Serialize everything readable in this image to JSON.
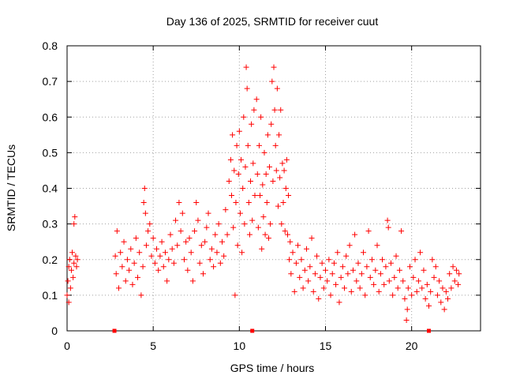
{
  "chart_data": {
    "type": "scatter",
    "title": "Day 136 of 2025, SRMTID for receiver cuut",
    "xlabel": "GPS time / hours",
    "ylabel": "SRMTID / TECUs",
    "xlim": [
      0,
      24
    ],
    "ylim": [
      0,
      0.8
    ],
    "x_ticks": [
      0,
      5,
      10,
      15,
      20
    ],
    "y_ticks": [
      0,
      0.1,
      0.2,
      0.3,
      0.4,
      0.5,
      0.6,
      0.7,
      0.8
    ],
    "grid": true,
    "marker": "+",
    "color": "#ff0000",
    "zero_markers_x": [
      2.75,
      10.75,
      21.0
    ],
    "series": [
      {
        "name": "SRMTID",
        "points": [
          [
            0.0,
            0.1
          ],
          [
            0.05,
            0.14
          ],
          [
            0.1,
            0.18
          ],
          [
            0.1,
            0.08
          ],
          [
            0.15,
            0.2
          ],
          [
            0.2,
            0.12
          ],
          [
            0.25,
            0.17
          ],
          [
            0.3,
            0.22
          ],
          [
            0.35,
            0.15
          ],
          [
            0.4,
            0.3
          ],
          [
            0.4,
            0.19
          ],
          [
            0.45,
            0.32
          ],
          [
            0.5,
            0.21
          ],
          [
            0.55,
            0.18
          ],
          [
            0.6,
            0.2
          ],
          [
            2.8,
            0.21
          ],
          [
            2.85,
            0.16
          ],
          [
            2.9,
            0.28
          ],
          [
            3.0,
            0.12
          ],
          [
            3.1,
            0.22
          ],
          [
            3.2,
            0.18
          ],
          [
            3.3,
            0.25
          ],
          [
            3.4,
            0.14
          ],
          [
            3.5,
            0.2
          ],
          [
            3.6,
            0.17
          ],
          [
            3.7,
            0.23
          ],
          [
            3.8,
            0.13
          ],
          [
            3.9,
            0.19
          ],
          [
            4.0,
            0.26
          ],
          [
            4.1,
            0.15
          ],
          [
            4.2,
            0.22
          ],
          [
            4.3,
            0.1
          ],
          [
            4.4,
            0.18
          ],
          [
            4.45,
            0.36
          ],
          [
            4.5,
            0.4
          ],
          [
            4.55,
            0.33
          ],
          [
            4.6,
            0.24
          ],
          [
            4.7,
            0.28
          ],
          [
            4.8,
            0.3
          ],
          [
            4.9,
            0.21
          ],
          [
            5.0,
            0.26
          ],
          [
            5.1,
            0.19
          ],
          [
            5.2,
            0.23
          ],
          [
            5.3,
            0.17
          ],
          [
            5.4,
            0.21
          ],
          [
            5.5,
            0.25
          ],
          [
            5.6,
            0.18
          ],
          [
            5.7,
            0.22
          ],
          [
            5.8,
            0.14
          ],
          [
            5.9,
            0.2
          ],
          [
            6.0,
            0.27
          ],
          [
            6.1,
            0.23
          ],
          [
            6.2,
            0.19
          ],
          [
            6.3,
            0.31
          ],
          [
            6.4,
            0.24
          ],
          [
            6.5,
            0.36
          ],
          [
            6.6,
            0.28
          ],
          [
            6.7,
            0.33
          ],
          [
            6.8,
            0.2
          ],
          [
            6.9,
            0.25
          ],
          [
            7.0,
            0.17
          ],
          [
            7.1,
            0.26
          ],
          [
            7.2,
            0.22
          ],
          [
            7.3,
            0.14
          ],
          [
            7.4,
            0.28
          ],
          [
            7.5,
            0.36
          ],
          [
            7.6,
            0.31
          ],
          [
            7.7,
            0.19
          ],
          [
            7.8,
            0.24
          ],
          [
            7.9,
            0.16
          ],
          [
            8.0,
            0.25
          ],
          [
            8.1,
            0.29
          ],
          [
            8.2,
            0.33
          ],
          [
            8.3,
            0.2
          ],
          [
            8.4,
            0.23
          ],
          [
            8.5,
            0.18
          ],
          [
            8.6,
            0.27
          ],
          [
            8.7,
            0.22
          ],
          [
            8.8,
            0.3
          ],
          [
            8.9,
            0.19
          ],
          [
            9.0,
            0.25
          ],
          [
            9.1,
            0.21
          ],
          [
            9.2,
            0.34
          ],
          [
            9.3,
            0.27
          ],
          [
            9.4,
            0.42
          ],
          [
            9.5,
            0.48
          ],
          [
            9.55,
            0.38
          ],
          [
            9.6,
            0.55
          ],
          [
            9.65,
            0.29
          ],
          [
            9.7,
            0.45
          ],
          [
            9.75,
            0.1
          ],
          [
            9.8,
            0.36
          ],
          [
            9.85,
            0.52
          ],
          [
            9.9,
            0.24
          ],
          [
            9.95,
            0.44
          ],
          [
            10.0,
            0.56
          ],
          [
            10.05,
            0.33
          ],
          [
            10.1,
            0.48
          ],
          [
            10.15,
            0.22
          ],
          [
            10.2,
            0.4
          ],
          [
            10.25,
            0.6
          ],
          [
            10.3,
            0.3
          ],
          [
            10.35,
            0.46
          ],
          [
            10.4,
            0.74
          ],
          [
            10.45,
            0.68
          ],
          [
            10.5,
            0.52
          ],
          [
            10.55,
            0.36
          ],
          [
            10.6,
            0.27
          ],
          [
            10.65,
            0.42
          ],
          [
            10.7,
            0.58
          ],
          [
            10.75,
            0.31
          ],
          [
            10.8,
            0.47
          ],
          [
            10.85,
            0.62
          ],
          [
            10.9,
            0.38
          ],
          [
            11.0,
            0.65
          ],
          [
            11.05,
            0.44
          ],
          [
            11.1,
            0.29
          ],
          [
            11.15,
            0.52
          ],
          [
            11.2,
            0.38
          ],
          [
            11.25,
            0.6
          ],
          [
            11.3,
            0.23
          ],
          [
            11.35,
            0.41
          ],
          [
            11.4,
            0.32
          ],
          [
            11.45,
            0.5
          ],
          [
            11.5,
            0.27
          ],
          [
            11.55,
            0.44
          ],
          [
            11.6,
            0.36
          ],
          [
            11.65,
            0.55
          ],
          [
            11.7,
            0.26
          ],
          [
            11.75,
            0.46
          ],
          [
            11.8,
            0.3
          ],
          [
            11.85,
            0.58
          ],
          [
            11.9,
            0.7
          ],
          [
            11.95,
            0.42
          ],
          [
            12.0,
            0.74
          ],
          [
            12.05,
            0.62
          ],
          [
            12.1,
            0.52
          ],
          [
            12.15,
            0.45
          ],
          [
            12.2,
            0.68
          ],
          [
            12.25,
            0.35
          ],
          [
            12.3,
            0.55
          ],
          [
            12.35,
            0.43
          ],
          [
            12.4,
            0.62
          ],
          [
            12.45,
            0.3
          ],
          [
            12.5,
            0.47
          ],
          [
            12.55,
            0.36
          ],
          [
            12.6,
            0.45
          ],
          [
            12.65,
            0.28
          ],
          [
            12.7,
            0.4
          ],
          [
            12.75,
            0.48
          ],
          [
            12.8,
            0.27
          ],
          [
            12.85,
            0.38
          ],
          [
            12.9,
            0.2
          ],
          [
            12.95,
            0.25
          ],
          [
            13.0,
            0.16
          ],
          [
            13.1,
            0.22
          ],
          [
            13.2,
            0.11
          ],
          [
            13.3,
            0.19
          ],
          [
            13.4,
            0.24
          ],
          [
            13.5,
            0.15
          ],
          [
            13.6,
            0.2
          ],
          [
            13.7,
            0.12
          ],
          [
            13.8,
            0.17
          ],
          [
            13.9,
            0.23
          ],
          [
            14.0,
            0.14
          ],
          [
            14.1,
            0.18
          ],
          [
            14.2,
            0.26
          ],
          [
            14.3,
            0.11
          ],
          [
            14.4,
            0.16
          ],
          [
            14.5,
            0.21
          ],
          [
            14.6,
            0.09
          ],
          [
            14.7,
            0.15
          ],
          [
            14.8,
            0.19
          ],
          [
            14.9,
            0.12
          ],
          [
            15.0,
            0.17
          ],
          [
            15.1,
            0.14
          ],
          [
            15.2,
            0.2
          ],
          [
            15.3,
            0.1
          ],
          [
            15.4,
            0.16
          ],
          [
            15.5,
            0.19
          ],
          [
            15.6,
            0.13
          ],
          [
            15.7,
            0.22
          ],
          [
            15.8,
            0.08
          ],
          [
            15.9,
            0.15
          ],
          [
            16.0,
            0.18
          ],
          [
            16.1,
            0.12
          ],
          [
            16.2,
            0.21
          ],
          [
            16.3,
            0.16
          ],
          [
            16.4,
            0.24
          ],
          [
            16.5,
            0.11
          ],
          [
            16.6,
            0.17
          ],
          [
            16.7,
            0.27
          ],
          [
            16.8,
            0.14
          ],
          [
            16.9,
            0.19
          ],
          [
            17.0,
            0.12
          ],
          [
            17.1,
            0.16
          ],
          [
            17.2,
            0.22
          ],
          [
            17.3,
            0.1
          ],
          [
            17.4,
            0.18
          ],
          [
            17.5,
            0.28
          ],
          [
            17.6,
            0.15
          ],
          [
            17.7,
            0.2
          ],
          [
            17.8,
            0.13
          ],
          [
            17.9,
            0.17
          ],
          [
            18.0,
            0.24
          ],
          [
            18.1,
            0.11
          ],
          [
            18.2,
            0.16
          ],
          [
            18.3,
            0.2
          ],
          [
            18.4,
            0.13
          ],
          [
            18.5,
            0.18
          ],
          [
            18.6,
            0.31
          ],
          [
            18.65,
            0.29
          ],
          [
            18.7,
            0.14
          ],
          [
            18.8,
            0.19
          ],
          [
            18.9,
            0.1
          ],
          [
            19.0,
            0.15
          ],
          [
            19.1,
            0.21
          ],
          [
            19.2,
            0.12
          ],
          [
            19.3,
            0.17
          ],
          [
            19.4,
            0.28
          ],
          [
            19.5,
            0.14
          ],
          [
            19.6,
            0.09
          ],
          [
            19.7,
            0.03
          ],
          [
            19.75,
            0.06
          ],
          [
            19.8,
            0.12
          ],
          [
            19.9,
            0.18
          ],
          [
            20.0,
            0.1
          ],
          [
            20.1,
            0.15
          ],
          [
            20.2,
            0.2
          ],
          [
            20.3,
            0.11
          ],
          [
            20.4,
            0.14
          ],
          [
            20.5,
            0.22
          ],
          [
            20.6,
            0.12
          ],
          [
            20.7,
            0.17
          ],
          [
            20.8,
            0.09
          ],
          [
            20.9,
            0.13
          ],
          [
            21.0,
            0.07
          ],
          [
            21.1,
            0.11
          ],
          [
            21.2,
            0.2
          ],
          [
            21.3,
            0.15
          ],
          [
            21.4,
            0.18
          ],
          [
            21.5,
            0.1
          ],
          [
            21.6,
            0.14
          ],
          [
            21.7,
            0.08
          ],
          [
            21.8,
            0.12
          ],
          [
            21.9,
            0.06
          ],
          [
            22.0,
            0.11
          ],
          [
            22.1,
            0.09
          ],
          [
            22.2,
            0.16
          ],
          [
            22.3,
            0.12
          ],
          [
            22.4,
            0.18
          ],
          [
            22.5,
            0.14
          ],
          [
            22.6,
            0.17
          ],
          [
            22.7,
            0.13
          ],
          [
            22.75,
            0.16
          ]
        ]
      }
    ]
  }
}
